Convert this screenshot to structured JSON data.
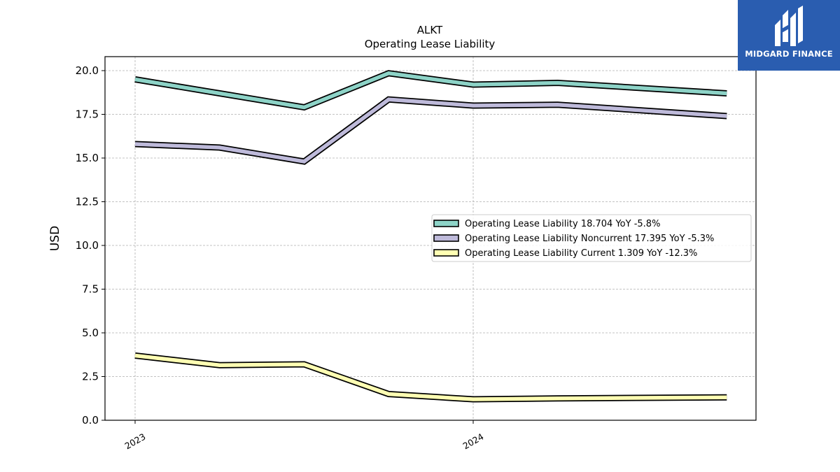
{
  "brand": {
    "name": "MIDGARD FINANCE",
    "color": "#2a5db0"
  },
  "chart_data": {
    "type": "line",
    "title": "ALKT",
    "subtitle": "Operating Lease Liability",
    "ylabel": "USD",
    "xlabel": "",
    "x_tick_labels": [
      "2023",
      "2024"
    ],
    "y_ticks": [
      "0.0",
      "2.5",
      "5.0",
      "7.5",
      "10.0",
      "12.5",
      "15.0",
      "17.5",
      "20.0"
    ],
    "ylim": [
      0,
      20.8
    ],
    "grid": true,
    "legend_position": "center-right",
    "x": [
      "2023-Q1",
      "2023-Q2",
      "2023-Q3",
      "2023-Q4",
      "2024-Q1",
      "2024-Q2",
      "2024-Q4"
    ],
    "series": [
      {
        "name": "Operating Lease Liability",
        "legend": "Operating Lease Liability  18.704 YoY -5.8%",
        "color": "#8dd3c7",
        "values": [
          19.5,
          18.7,
          17.9,
          19.85,
          19.2,
          19.3,
          18.7
        ]
      },
      {
        "name": "Operating Lease Liability Noncurrent",
        "legend": "Operating Lease Liability Noncurrent  17.395 YoY -5.3%",
        "color": "#bebada",
        "values": [
          15.8,
          15.6,
          14.8,
          18.35,
          18.0,
          18.05,
          17.4
        ]
      },
      {
        "name": "Operating Lease Liability Current",
        "legend": "Operating Lease Liability Current  1.309 YoY -12.3%",
        "color": "#ffffb3",
        "values": [
          3.7,
          3.15,
          3.2,
          1.5,
          1.2,
          1.25,
          1.31
        ]
      }
    ]
  }
}
